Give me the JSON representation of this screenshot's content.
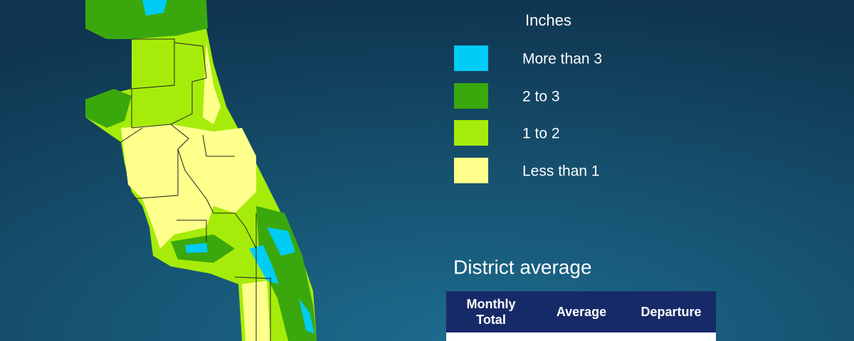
{
  "legend": {
    "title": "Inches",
    "items": [
      {
        "label": "More than 3",
        "color": "#00ccf5"
      },
      {
        "label": "2 to 3",
        "color": "#3aa80c"
      },
      {
        "label": "1 to 2",
        "color": "#a6ec0a"
      },
      {
        "label": "Less than 1",
        "color": "#ffff8c"
      }
    ]
  },
  "district": {
    "title": "District average",
    "table": {
      "headers": [
        "Monthly Total",
        "Average",
        "Departure"
      ]
    }
  }
}
